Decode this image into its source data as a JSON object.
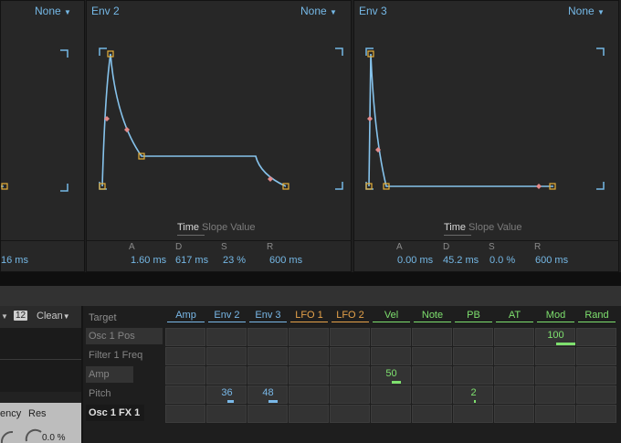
{
  "panels": {
    "left": {
      "none_label": "None",
      "time_value": "16 ms"
    },
    "env2": {
      "title": "Env 2",
      "none_label": "None",
      "tabs": [
        "Time",
        "Slope",
        "Value"
      ],
      "params": [
        {
          "label": "A",
          "value": "1.60 ms"
        },
        {
          "label": "D",
          "value": "617 ms"
        },
        {
          "label": "S",
          "value": "23 %"
        },
        {
          "label": "R",
          "value": "600 ms"
        }
      ]
    },
    "env3": {
      "title": "Env 3",
      "none_label": "None",
      "tabs": [
        "Time",
        "Slope",
        "Value"
      ],
      "params": [
        {
          "label": "A",
          "value": "0.00 ms"
        },
        {
          "label": "D",
          "value": "45.2 ms"
        },
        {
          "label": "S",
          "value": "0.0 %"
        },
        {
          "label": "R",
          "value": "600 ms"
        }
      ]
    }
  },
  "left_controls": {
    "poly_value": "12",
    "quality_label": "Clean",
    "filter_label_partial": "ency",
    "res_label": "Res",
    "res_value": "0.0 %"
  },
  "matrix": {
    "target_header": "Target",
    "columns": [
      {
        "label": "Amp",
        "color": "#79b8e8"
      },
      {
        "label": "Env 2",
        "color": "#79b8e8"
      },
      {
        "label": "Env 3",
        "color": "#79b8e8"
      },
      {
        "label": "LFO 1",
        "color": "#e6a24a"
      },
      {
        "label": "LFO 2",
        "color": "#e6a24a"
      },
      {
        "label": "Vel",
        "color": "#7ee06e"
      },
      {
        "label": "Note",
        "color": "#7ee06e"
      },
      {
        "label": "PB",
        "color": "#7ee06e"
      },
      {
        "label": "AT",
        "color": "#7ee06e"
      },
      {
        "label": "Mod",
        "color": "#7ee06e"
      },
      {
        "label": "Rand",
        "color": "#7ee06e"
      }
    ],
    "rows": [
      {
        "label": "Osc 1 Pos"
      },
      {
        "label": "Filter 1 Freq"
      },
      {
        "label": "Amp"
      },
      {
        "label": "Pitch"
      },
      {
        "label": "Osc 1 FX 1"
      }
    ],
    "values": [
      {
        "row": 0,
        "col": 9,
        "text": "100",
        "fraction": 1.0,
        "color": "#7ee06e"
      },
      {
        "row": 2,
        "col": 5,
        "text": "50",
        "fraction": 0.5,
        "color": "#7ee06e"
      },
      {
        "row": 3,
        "col": 1,
        "text": "36",
        "fraction": 0.36,
        "color": "#79b8e8"
      },
      {
        "row": 3,
        "col": 2,
        "text": "48",
        "fraction": 0.48,
        "color": "#79b8e8"
      },
      {
        "row": 3,
        "col": 7,
        "text": "2",
        "fraction": 0.02,
        "color": "#7ee06e"
      }
    ]
  },
  "colors": {
    "accent_blue": "#75b8e6",
    "node_orange": "#e6b03a",
    "mod_green": "#7ee06e",
    "lfo_orange": "#e6a24a",
    "curve_pink": "#e38a8a"
  }
}
